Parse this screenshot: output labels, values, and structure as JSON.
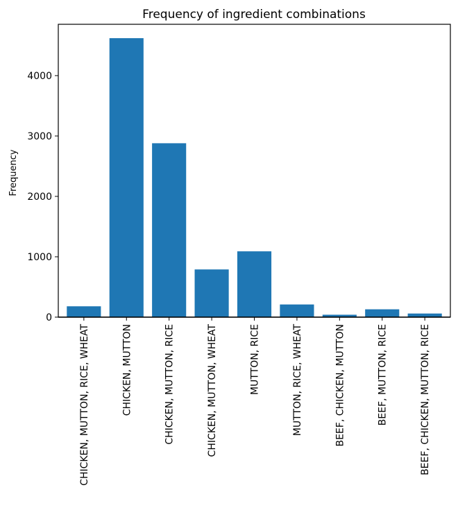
{
  "chart_data": {
    "type": "bar",
    "title": "Frequency of ingredient combinations",
    "xlabel": "",
    "ylabel": "Frequency",
    "categories": [
      "CHICKEN, MUTTON, RICE, WHEAT",
      "CHICKEN, MUTTON",
      "CHICKEN, MUTTON, RICE",
      "CHICKEN, MUTTON, WHEAT",
      "MUTTON, RICE",
      "MUTTON, RICE, WHEAT",
      "BEEF, CHICKEN, MUTTON",
      "BEEF, MUTTON, RICE",
      "BEEF, CHICKEN, MUTTON, RICE"
    ],
    "values": [
      180,
      4620,
      2880,
      790,
      1090,
      210,
      40,
      130,
      60
    ],
    "ylim": [
      0,
      4850
    ],
    "yticks": [
      0,
      1000,
      2000,
      3000,
      4000
    ],
    "grid": false,
    "bar_color": "#1f77b4"
  }
}
